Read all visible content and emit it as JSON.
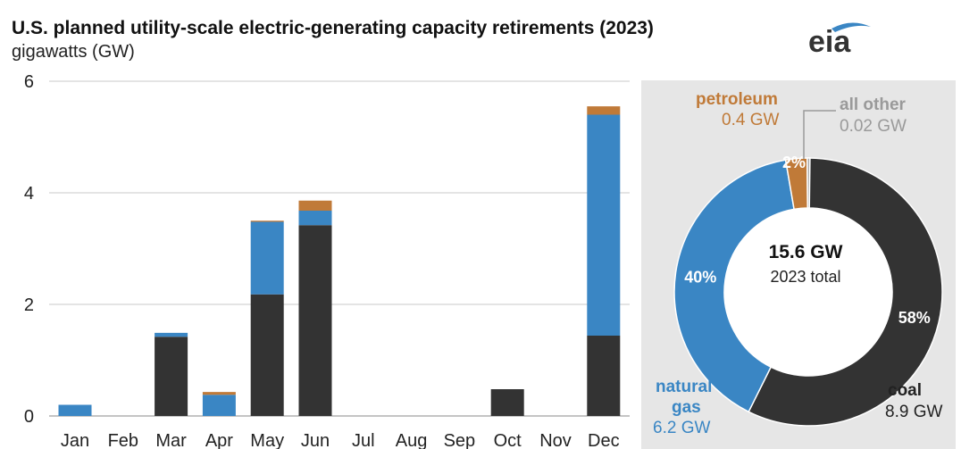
{
  "header": {
    "title": "U.S. planned utility-scale electric-generating capacity retirements (2023)",
    "subtitle": "gigawatts (GW)",
    "logo_text": "eia"
  },
  "colors": {
    "coal": "#333333",
    "natural_gas": "#3a86c4",
    "petroleum": "#c07a38",
    "all_other": "#a9a9a9"
  },
  "chart_data": [
    {
      "type": "bar",
      "stacked": true,
      "categories": [
        "Jan",
        "Feb",
        "Mar",
        "Apr",
        "May",
        "Jun",
        "Jul",
        "Aug",
        "Sep",
        "Oct",
        "Nov",
        "Dec"
      ],
      "series": [
        {
          "key": "coal",
          "values": [
            0,
            0,
            1.42,
            0,
            2.18,
            3.42,
            0,
            0,
            0,
            0.48,
            0,
            1.44
          ]
        },
        {
          "key": "natural_gas",
          "values": [
            0.2,
            0,
            0.07,
            0.38,
            1.3,
            0.26,
            0,
            0,
            0,
            0,
            0,
            3.96
          ]
        },
        {
          "key": "petroleum",
          "values": [
            0,
            0,
            0,
            0.05,
            0.02,
            0.18,
            0,
            0,
            0,
            0,
            0,
            0.15
          ]
        }
      ],
      "ylim": [
        0,
        6
      ],
      "yticks": [
        "0",
        "2",
        "4",
        "6"
      ],
      "grid": true
    },
    {
      "type": "pie",
      "donut": true,
      "center_value": "15.6 GW",
      "center_label": "2023 total",
      "slices": [
        {
          "key": "coal",
          "name": "coal",
          "value": 8.9,
          "value_label": "8.9 GW",
          "percent_label": "58%"
        },
        {
          "key": "natural_gas",
          "name": "natural gas",
          "value": 6.2,
          "value_label": "6.2 GW",
          "percent_label": "40%"
        },
        {
          "key": "petroleum",
          "name": "petroleum",
          "value": 0.4,
          "value_label": "0.4 GW",
          "percent_label": "2%"
        },
        {
          "key": "all_other",
          "name": "all other",
          "value": 0.02,
          "value_label": "0.02 GW",
          "percent_label": ""
        }
      ]
    }
  ]
}
